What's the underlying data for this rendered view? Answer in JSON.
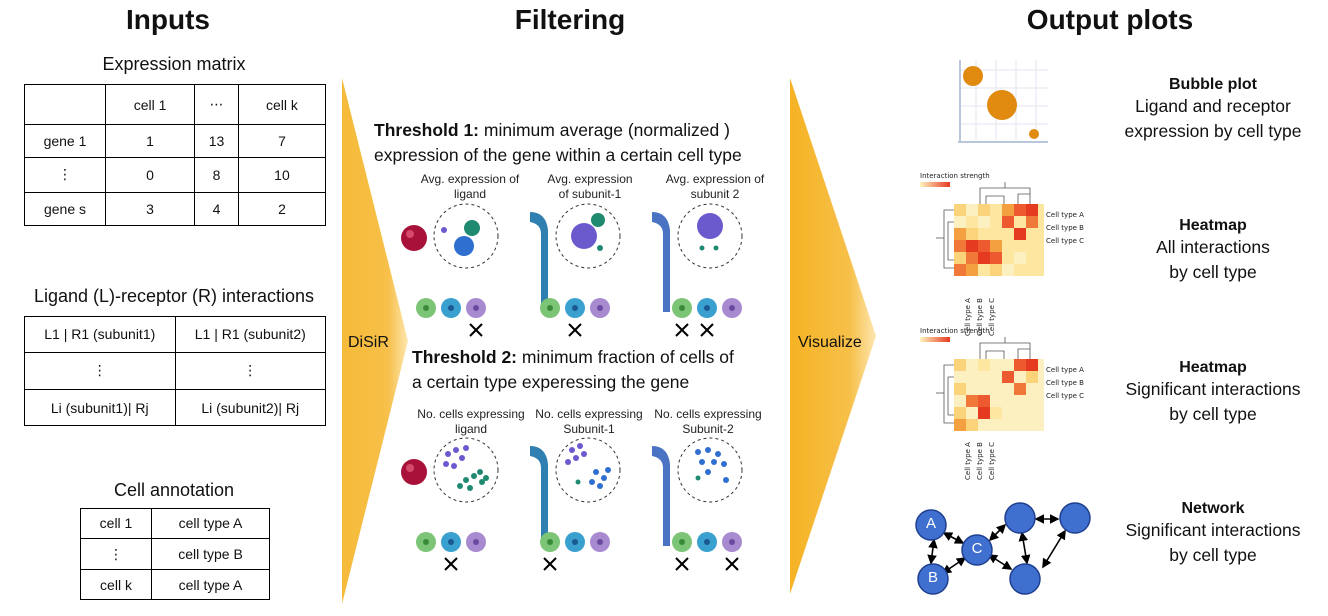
{
  "headings": {
    "inputs": "Inputs",
    "filtering": "Filtering",
    "output": "Output plots"
  },
  "expression_matrix": {
    "title": "Expression matrix",
    "header": [
      "",
      "cell 1",
      "⋯",
      "cell k"
    ],
    "rows": [
      [
        "gene 1",
        "1",
        "13",
        "7"
      ],
      [
        "⋮",
        "0",
        "8",
        "10"
      ],
      [
        "gene s",
        "3",
        "4",
        "2"
      ]
    ]
  },
  "lr_interactions": {
    "title": "Ligand (L)-receptor (R) interactions",
    "rows": [
      [
        "L1 | R1 (subunit1)",
        "L1 | R1 (subunit2)"
      ],
      [
        "⋮",
        "⋮"
      ],
      [
        "Li (subunit1)| Rj",
        "Li (subunit2)| Rj"
      ]
    ]
  },
  "cell_annotation": {
    "title": "Cell annotation",
    "rows": [
      [
        "cell 1",
        "cell type A"
      ],
      [
        "⋮",
        "cell type B"
      ],
      [
        "cell k",
        "cell type A"
      ]
    ]
  },
  "arrows": {
    "disir": "DiSiR",
    "visualize": "Visualize"
  },
  "threshold1": {
    "bold": "Threshold 1:",
    "text1": " minimum average (normalized )",
    "text2": "expression of the gene within a certain cell type",
    "captions": [
      [
        "Avg. expression of",
        "ligand"
      ],
      [
        "Avg. expression",
        "of subunit-1"
      ],
      [
        "Avg. expression of",
        "subunit 2"
      ]
    ]
  },
  "threshold2": {
    "bold": "Threshold 2:",
    "text1": " minimum fraction of cells of",
    "text2": "a certain type experessing the gene",
    "captions": [
      [
        "No. cells expressing",
        "ligand"
      ],
      [
        "No. cells expressing",
        "Subunit-1"
      ],
      [
        "No. cells expressing",
        "Subunit-2"
      ]
    ]
  },
  "outputs": [
    {
      "title": "Bubble plot",
      "desc1": "Ligand and receptor",
      "desc2": "expression by cell type"
    },
    {
      "title": "Heatmap",
      "desc1": "All interactions",
      "desc2": "by cell type"
    },
    {
      "title": "Heatmap",
      "desc1": "Significant interactions",
      "desc2": "by cell type"
    },
    {
      "title": "Network",
      "desc1": "Significant interactions",
      "desc2": "by cell type"
    }
  ],
  "heatmap": {
    "legend": "Interaction strength",
    "row_labels": [
      "Cell type A",
      "Cell type B",
      "Cell type C"
    ],
    "col_labels": [
      "Cell type A",
      "Cell type B",
      "Cell type C"
    ]
  },
  "network_nodes": [
    "A",
    "B",
    "C"
  ],
  "colors": {
    "arrow": "#f5b324",
    "ligand": "#a8123a",
    "receptor": "#2f7fb0",
    "node": "#3f6fcf"
  }
}
